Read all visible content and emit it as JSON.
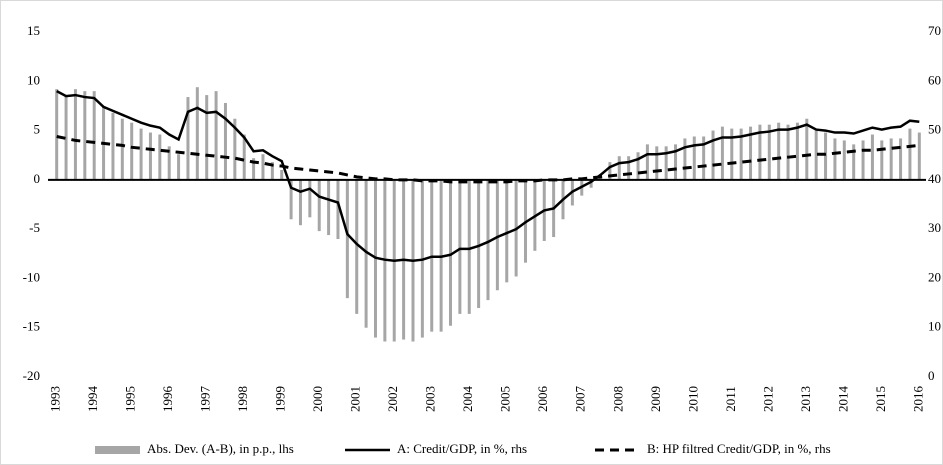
{
  "chart_data": {
    "type": "bar-line",
    "categories": [
      "1993",
      null,
      null,
      null,
      "1994",
      null,
      null,
      null,
      "1995",
      null,
      null,
      null,
      "1996",
      null,
      null,
      null,
      "1997",
      null,
      null,
      null,
      "1998",
      null,
      null,
      null,
      "1999",
      null,
      null,
      null,
      "2000",
      null,
      null,
      null,
      "2001",
      null,
      null,
      null,
      "2002",
      null,
      null,
      null,
      "2003",
      null,
      null,
      null,
      "2004",
      null,
      null,
      null,
      "2005",
      null,
      null,
      null,
      "2006",
      null,
      null,
      null,
      "2007",
      null,
      null,
      null,
      "2008",
      null,
      null,
      null,
      "2009",
      null,
      null,
      null,
      "2010",
      null,
      null,
      null,
      "2011",
      null,
      null,
      null,
      "2012",
      null,
      null,
      null,
      "2013",
      null,
      null,
      null,
      "2014",
      null,
      null,
      null,
      "2015",
      null,
      null,
      null,
      "2016"
    ],
    "series": [
      {
        "name": "Abs. Dev. (A-B), in p.p., lhs",
        "type": "bar",
        "color": "#a6a6a6",
        "values": [
          9.2,
          8.6,
          9.2,
          9.0,
          9.0,
          7.4,
          6.8,
          6.2,
          5.8,
          5.2,
          4.8,
          4.6,
          3.4,
          2.6,
          8.4,
          9.4,
          8.6,
          9.0,
          7.8,
          6.2,
          4.6,
          2.2,
          2.6,
          1.8,
          1.0,
          -4.0,
          -4.6,
          -3.8,
          -5.2,
          -5.6,
          -6.0,
          -12.0,
          -13.6,
          -15.0,
          -16.0,
          -16.4,
          -16.4,
          -16.2,
          -16.4,
          -16.0,
          -15.4,
          -15.4,
          -14.8,
          -13.6,
          -13.6,
          -13.0,
          -12.2,
          -11.2,
          -10.4,
          -9.8,
          -8.4,
          -7.2,
          -6.2,
          -5.8,
          -4.0,
          -2.6,
          -1.6,
          -0.8,
          0.4,
          1.8,
          2.4,
          2.4,
          2.8,
          3.6,
          3.4,
          3.4,
          3.6,
          4.2,
          4.4,
          4.4,
          5.0,
          5.4,
          5.2,
          5.2,
          5.4,
          5.6,
          5.6,
          5.8,
          5.6,
          5.8,
          6.2,
          5.0,
          4.8,
          4.2,
          4.0,
          3.6,
          4.0,
          4.6,
          4.0,
          4.2,
          4.2,
          5.2,
          4.8
        ]
      },
      {
        "name": "A: Credit/GDP, in %, rhs",
        "type": "line",
        "axis": "y2",
        "color": "#000000",
        "line_style": "solid",
        "values": [
          58,
          57,
          57.2,
          56.8,
          56.6,
          54.8,
          54,
          53.2,
          52.4,
          51.6,
          51,
          50.6,
          49.2,
          48.2,
          53.8,
          54.6,
          53.6,
          53.8,
          52.4,
          50.6,
          48.6,
          45.8,
          46,
          44.8,
          43.8,
          38.4,
          37.6,
          38.2,
          36.6,
          36,
          35.4,
          29,
          27,
          25.4,
          24.2,
          23.8,
          23.6,
          23.8,
          23.6,
          23.8,
          24.4,
          24.4,
          24.8,
          26,
          26,
          26.6,
          27.4,
          28.4,
          29.2,
          30,
          31.4,
          32.6,
          33.8,
          34.2,
          36,
          37.6,
          38.6,
          39.6,
          41,
          42.6,
          43.4,
          43.6,
          44.2,
          45.2,
          45.2,
          45.4,
          45.8,
          46.6,
          47,
          47.2,
          48,
          48.6,
          48.6,
          48.8,
          49.2,
          49.6,
          49.8,
          50.2,
          50.2,
          50.6,
          51.2,
          50.2,
          50,
          49.6,
          49.6,
          49.4,
          50,
          50.6,
          50.2,
          50.6,
          50.8,
          52,
          51.8
        ]
      },
      {
        "name": "B: HP filtred Credit/GDP, in %, rhs",
        "type": "line",
        "axis": "y2",
        "color": "#000000",
        "line_style": "dashed",
        "values": [
          48.8,
          48.4,
          48,
          47.8,
          47.6,
          47.4,
          47.2,
          47,
          46.6,
          46.4,
          46.2,
          46,
          45.8,
          45.6,
          45.4,
          45.2,
          45,
          44.8,
          44.6,
          44.4,
          44,
          43.6,
          43.4,
          43,
          42.8,
          42.4,
          42.2,
          42,
          41.8,
          41.6,
          41.4,
          41,
          40.6,
          40.4,
          40.2,
          40.2,
          40,
          40,
          40,
          39.8,
          39.8,
          39.8,
          39.6,
          39.6,
          39.6,
          39.6,
          39.6,
          39.6,
          39.6,
          39.8,
          39.8,
          39.8,
          40,
          40,
          40,
          40.2,
          40.2,
          40.4,
          40.6,
          40.8,
          41,
          41.2,
          41.4,
          41.6,
          41.8,
          42,
          42.2,
          42.4,
          42.6,
          42.8,
          43,
          43.2,
          43.4,
          43.6,
          43.8,
          44,
          44.2,
          44.4,
          44.6,
          44.8,
          45,
          45.2,
          45.2,
          45.4,
          45.6,
          45.8,
          46,
          46,
          46.2,
          46.4,
          46.6,
          46.8,
          47
        ]
      }
    ],
    "ylim": [
      -20,
      15
    ],
    "yticks": [
      -20,
      -15,
      -10,
      -5,
      0,
      5,
      10,
      15
    ],
    "y2lim": [
      0,
      70
    ],
    "y2ticks": [
      0,
      10,
      20,
      30,
      40,
      50,
      60,
      70
    ],
    "legend": "bottom"
  }
}
